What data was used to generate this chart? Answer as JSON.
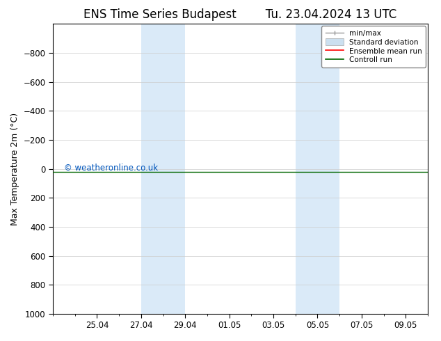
{
  "title": "ENS Time Series Budapest",
  "title2": "Tu. 23.04.2024 13 UTC",
  "ylabel": "Max Temperature 2m (°C)",
  "background_color": "#ffffff",
  "plot_bg_color": "#ffffff",
  "ylim_top": -1000,
  "ylim_bottom": 1000,
  "yticks": [
    -800,
    -600,
    -400,
    -200,
    0,
    200,
    400,
    600,
    800,
    1000
  ],
  "xlim": [
    0,
    17
  ],
  "xtick_positions": [
    2,
    4,
    6,
    8,
    10,
    12,
    14,
    16
  ],
  "xtick_labels": [
    "25.04",
    "27.04",
    "29.04",
    "01.05",
    "03.05",
    "05.05",
    "07.05",
    "09.05"
  ],
  "shaded_bands": [
    {
      "start": 4,
      "end": 6
    },
    {
      "start": 11,
      "end": 13
    }
  ],
  "control_run_y": 20,
  "watermark": "© weatheronline.co.uk",
  "watermark_color": "#0055bb",
  "legend_items": [
    {
      "label": "min/max",
      "color": "#999999",
      "type": "line"
    },
    {
      "label": "Standard deviation",
      "color": "#cce0f0",
      "type": "fill"
    },
    {
      "label": "Ensemble mean run",
      "color": "#ff0000",
      "type": "line"
    },
    {
      "label": "Controll run",
      "color": "#006600",
      "type": "line"
    }
  ],
  "title_fontsize": 12,
  "tick_fontsize": 8.5,
  "ylabel_fontsize": 9,
  "grid_color": "#cccccc",
  "border_color": "#000000",
  "shaded_color": "#daeaf8",
  "shaded_alpha": 1.0,
  "minor_tick_count": 2,
  "figwidth": 6.34,
  "figheight": 4.9,
  "dpi": 100
}
